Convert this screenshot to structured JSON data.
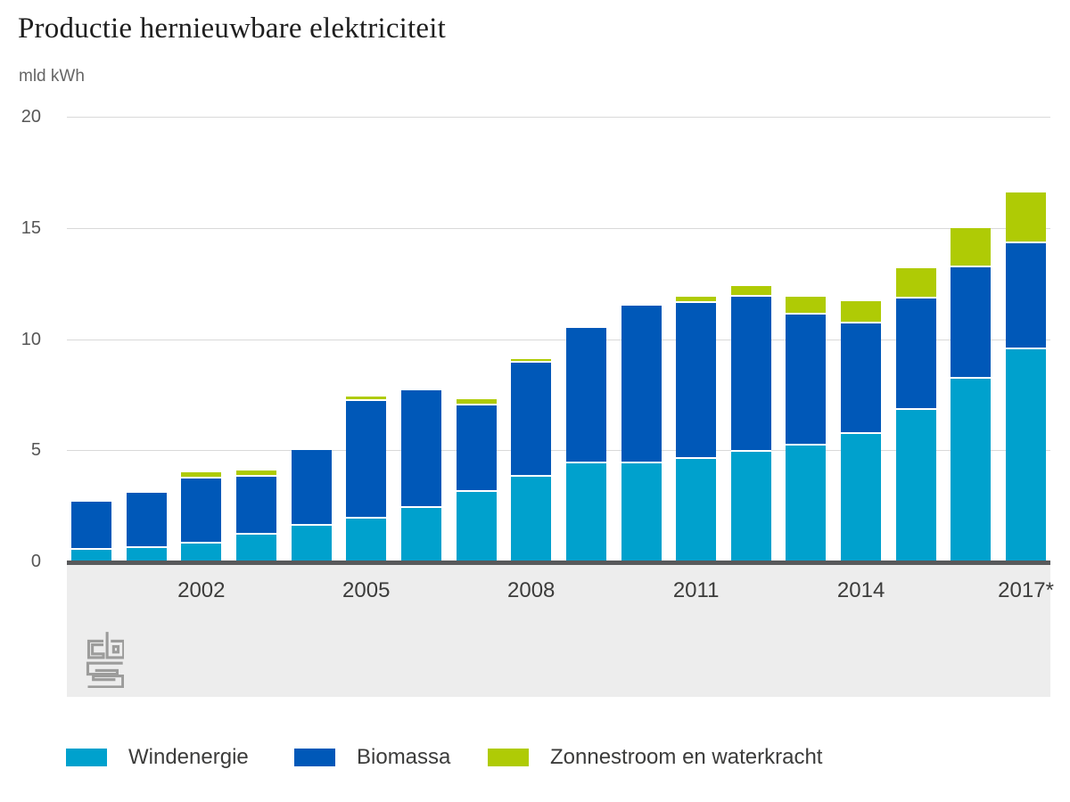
{
  "title": "Productie hernieuwbare elektriciteit",
  "unit_label": "mld kWh",
  "chart_data": {
    "type": "bar",
    "stacked": true,
    "title": "Productie hernieuwbare elektriciteit",
    "ylabel": "mld kWh",
    "ylim": [
      0,
      20
    ],
    "yticks": [
      0,
      5,
      10,
      15,
      20
    ],
    "grid": "horizontal",
    "legend_position": "bottom",
    "categories": [
      2000,
      2001,
      2002,
      2003,
      2004,
      2005,
      2006,
      2007,
      2008,
      2009,
      2010,
      2011,
      2012,
      2013,
      2014,
      2015,
      2016,
      2017
    ],
    "xtick_labels": [
      "2002",
      "2005",
      "2008",
      "2011",
      "2014",
      "2017*"
    ],
    "xtick_category_indices": [
      2,
      5,
      8,
      11,
      14,
      17
    ],
    "series": [
      {
        "name": "Windenergie",
        "color": "#00a1cd",
        "values": [
          0.6,
          0.7,
          0.9,
          1.3,
          1.7,
          2.0,
          2.5,
          3.2,
          3.9,
          4.5,
          4.5,
          4.7,
          5.0,
          5.3,
          5.8,
          6.9,
          8.3,
          9.6
        ]
      },
      {
        "name": "Biomassa",
        "color": "#0058b8",
        "values": [
          2.1,
          2.4,
          2.9,
          2.6,
          3.3,
          5.3,
          5.2,
          3.9,
          5.1,
          6.0,
          7.0,
          7.0,
          7.0,
          5.9,
          5.0,
          5.0,
          5.0,
          4.8
        ]
      },
      {
        "name": "Zonnestroom en waterkracht",
        "color": "#afcb05",
        "values": [
          0.0,
          0.0,
          0.2,
          0.2,
          0.0,
          0.1,
          0.0,
          0.2,
          0.1,
          0.0,
          0.0,
          0.2,
          0.4,
          0.7,
          0.9,
          1.3,
          1.7,
          2.2
        ]
      }
    ]
  },
  "colors": {
    "axis_line": "#58595b",
    "gridline": "#d9d9d9",
    "footer_panel": "#ededed",
    "tick_label": "#565656",
    "text": "#3c3c3b",
    "logo": "#9c9c9b"
  },
  "logo_alt": "CBS"
}
